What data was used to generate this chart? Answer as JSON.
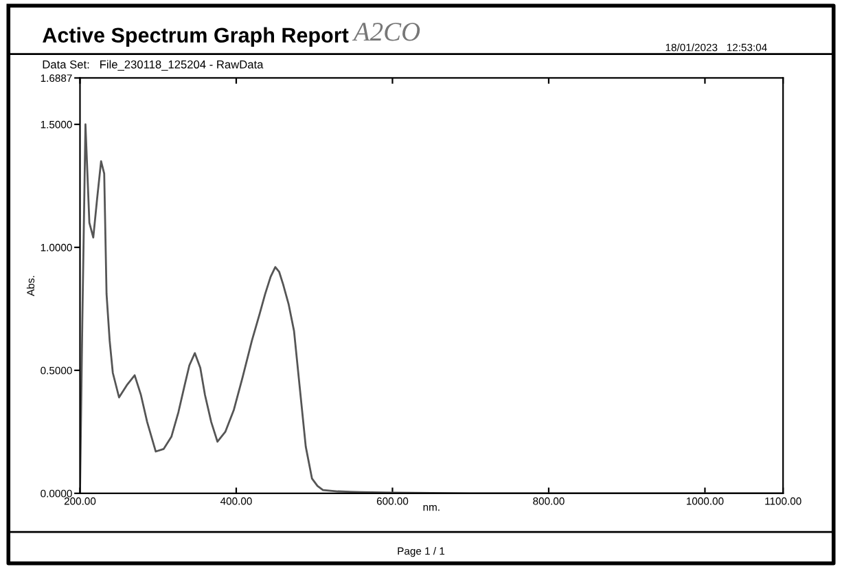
{
  "chart_data": {
    "type": "line",
    "title": "Active Spectrum Graph Report",
    "subtitle": "Data Set:   File_230118_125204 - RawData",
    "annotations": [
      "A2CO",
      "18/01/2023   12:53:04",
      "Page 1 / 1"
    ],
    "xlabel": "nm.",
    "ylabel": "Abs.",
    "x": [
      200,
      203,
      207,
      212,
      217,
      222,
      227,
      231,
      234,
      238,
      242,
      250,
      260,
      270,
      278,
      286,
      297,
      307,
      317,
      326,
      334,
      340,
      347,
      354,
      360,
      368,
      376,
      386,
      397,
      408,
      420,
      430,
      437,
      444,
      450,
      455,
      460,
      467,
      474,
      481,
      489,
      497,
      504,
      511,
      530,
      560,
      600,
      700,
      800,
      900,
      1000,
      1100
    ],
    "series": [
      {
        "color": "#555555",
        "values": [
          0.0,
          0.7,
          1.5,
          1.1,
          1.04,
          1.2,
          1.35,
          1.3,
          0.81,
          0.62,
          0.49,
          0.39,
          0.44,
          0.48,
          0.4,
          0.29,
          0.17,
          0.18,
          0.23,
          0.33,
          0.44,
          0.52,
          0.57,
          0.51,
          0.4,
          0.29,
          0.21,
          0.25,
          0.34,
          0.47,
          0.62,
          0.73,
          0.81,
          0.88,
          0.92,
          0.9,
          0.85,
          0.77,
          0.66,
          0.44,
          0.19,
          0.06,
          0.03,
          0.013,
          0.008,
          0.005,
          0.003,
          0.0,
          0.0,
          0.0,
          0.0,
          0.0
        ]
      }
    ],
    "xlim": [
      200,
      1100
    ],
    "ylim": [
      0,
      1.6887
    ],
    "xticks": [
      {
        "value": 200,
        "label": "200.00"
      },
      {
        "value": 400,
        "label": "400.00"
      },
      {
        "value": 600,
        "label": "600.00"
      },
      {
        "value": 800,
        "label": "800.00"
      },
      {
        "value": 1000,
        "label": "1000.00"
      },
      {
        "value": 1100,
        "label": "1100.00"
      }
    ],
    "yticks": [
      {
        "value": 0,
        "label": "0.0000"
      },
      {
        "value": 0.5,
        "label": "0.5000"
      },
      {
        "value": 1.0,
        "label": "1.0000"
      },
      {
        "value": 1.5,
        "label": "1.5000"
      },
      {
        "value": 1.6887,
        "label": "1.6887"
      }
    ],
    "grid": false,
    "legend": false
  }
}
